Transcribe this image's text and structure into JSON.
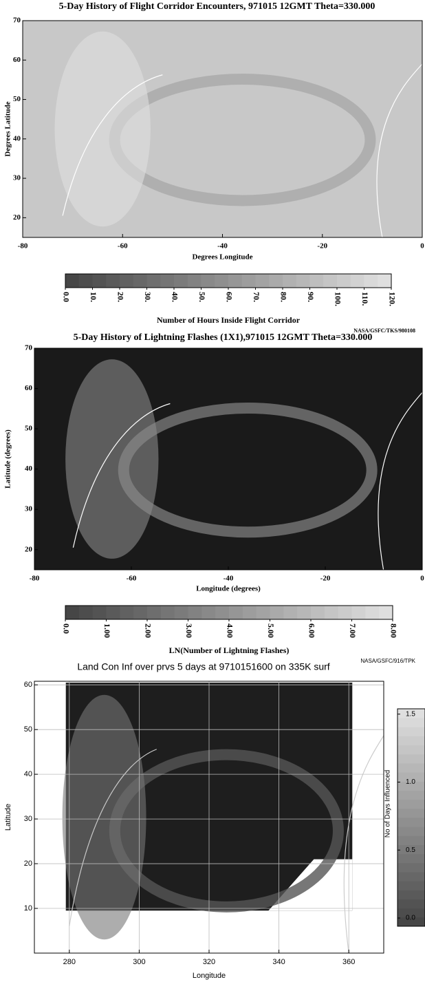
{
  "chart_data": [
    {
      "type": "map",
      "title": "5-Day History of Flight Corridor Encounters, 971015 12GMT Theta=330.000",
      "x_label": "Degrees Longitude",
      "y_label": "Degrees Latitude",
      "xlim": [
        -80,
        0
      ],
      "xticks": [
        -80,
        -60,
        -40,
        -20,
        0
      ],
      "ylim": [
        15,
        70
      ],
      "yticks": [
        20,
        30,
        40,
        50,
        60,
        70
      ],
      "colorbar": {
        "label": "Number of Hours Inside Flight Corridor",
        "lim": [
          0,
          120
        ],
        "ticks": [
          {
            "value": 0,
            "label": "0.0"
          },
          {
            "value": 10,
            "label": "10."
          },
          {
            "value": 20,
            "label": "20."
          },
          {
            "value": 30,
            "label": "30."
          },
          {
            "value": 40,
            "label": "40."
          },
          {
            "value": 50,
            "label": "50."
          },
          {
            "value": 60,
            "label": "60."
          },
          {
            "value": 70,
            "label": "70."
          },
          {
            "value": 80,
            "label": "80."
          },
          {
            "value": 90,
            "label": "90."
          },
          {
            "value": 100,
            "label": "100."
          },
          {
            "value": 110,
            "label": "110."
          },
          {
            "value": 120,
            "label": "120."
          }
        ]
      }
    },
    {
      "type": "map",
      "credit": "NASA/GSFC/TKS/980108",
      "title": "5-Day History of Lightning Flashes (1X1),971015 12GMT Theta=330.000",
      "x_label": "Longitude (degrees)",
      "y_label": "Latitude (degrees)",
      "xlim": [
        -80,
        0
      ],
      "xticks": [
        -80,
        -60,
        -40,
        -20,
        0
      ],
      "ylim": [
        15,
        70
      ],
      "yticks": [
        20,
        30,
        40,
        50,
        60,
        70
      ],
      "colorbar": {
        "label": "LN(Number of Lightning Flashes)",
        "lim": [
          0,
          8
        ],
        "ticks": [
          {
            "value": 0,
            "label": "0.0"
          },
          {
            "value": 1,
            "label": "1.00"
          },
          {
            "value": 2,
            "label": "2.00"
          },
          {
            "value": 3,
            "label": "3.00"
          },
          {
            "value": 4,
            "label": "4.00"
          },
          {
            "value": 5,
            "label": "5.00"
          },
          {
            "value": 6,
            "label": "6.00"
          },
          {
            "value": 7,
            "label": "7.00"
          },
          {
            "value": 8,
            "label": "8.00"
          }
        ]
      }
    },
    {
      "type": "map",
      "credit": "NASA/GSFC/916/TPK",
      "title": "Land Con Inf over prvs 5 days at 9710151600 on 335K surf",
      "x_label": "Longitude",
      "y_label": "Latitude",
      "grid": true,
      "xlim": [
        270,
        370
      ],
      "xticks": [
        280,
        300,
        320,
        340,
        360
      ],
      "ylim": [
        0,
        60.8
      ],
      "yticks": [
        10,
        20,
        30,
        40,
        50,
        60
      ],
      "colorbar": {
        "label": "No of Days Influenced",
        "lim": [
          0,
          1.6
        ],
        "ticks": [
          {
            "value": 0,
            "label": "0.0"
          },
          0.5,
          {
            "value": 1,
            "label": "1.0"
          },
          1.5
        ]
      }
    }
  ]
}
